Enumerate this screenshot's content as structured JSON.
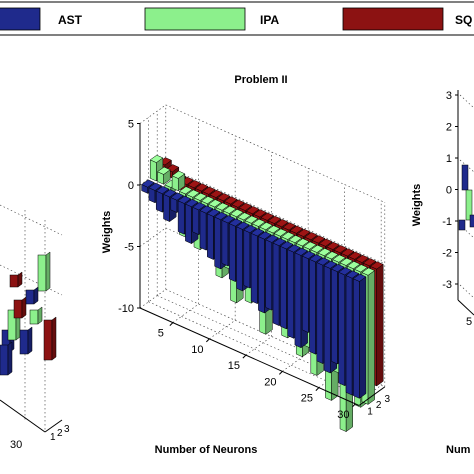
{
  "legend": {
    "entries": [
      {
        "label": "AST",
        "color": "#1f2a8c"
      },
      {
        "label": "IPA",
        "color": "#8cf08c"
      },
      {
        "label": "SQ",
        "color": "#8c1212"
      }
    ]
  },
  "chart_data": [
    {
      "type": "bar3d",
      "panel": "left",
      "title": "",
      "xlabel": "",
      "ylabel": "",
      "x_ticks": [
        "30"
      ],
      "depth_ticks": [
        "1",
        "2",
        "3"
      ]
    },
    {
      "type": "bar3d",
      "panel": "center",
      "title": "Problem II",
      "xlabel": "Number of Neurons",
      "ylabel": "Weights",
      "zlim": [
        -10,
        5
      ],
      "z_ticks": [
        "5",
        "0",
        "-5",
        "-10"
      ],
      "x_ticks": [
        "5",
        "10",
        "15",
        "20",
        "25",
        "30"
      ],
      "depth_ticks": [
        "1",
        "2",
        "3"
      ],
      "x": [
        1,
        2,
        3,
        4,
        5,
        6,
        7,
        8,
        9,
        10,
        11,
        12,
        13,
        14,
        15,
        16,
        17,
        18,
        19,
        20,
        21,
        22,
        23,
        24,
        25,
        26,
        27,
        28,
        29,
        30
      ],
      "series": [
        {
          "name": "AST",
          "values": [
            -0.5,
            -1.0,
            -1.5,
            -2.0,
            -1.0,
            -2.5,
            -3.0,
            -2.0,
            -3.0,
            -3.5,
            -4.0,
            -3.5,
            -4.5,
            -5.0,
            -4.5,
            -5.5,
            -6.0,
            -5.5,
            -6.5,
            -6.5,
            -7.0,
            -7.5,
            -6.0,
            -7.5,
            -8.0,
            -8.5,
            -7.5,
            -9.0,
            -9.5,
            -9.5
          ]
        },
        {
          "name": "IPA",
          "values": [
            1.5,
            0.8,
            -0.5,
            1.0,
            -3.5,
            -2.0,
            -4.0,
            -1.5,
            -3.5,
            -5.5,
            -4.5,
            -7.0,
            -5.0,
            -6.5,
            -5.5,
            -8.5,
            -6.0,
            -7.0,
            -8.0,
            -6.5,
            -9.0,
            -8.0,
            -10.0,
            -8.5,
            -11.5,
            -9.0,
            -13.5,
            -10.0,
            -11.0,
            -10.5
          ]
        },
        {
          "name": "SQ",
          "values": [
            0.8,
            0.5,
            -0.5,
            -1.5,
            -1.5,
            -2.0,
            -2.5,
            -2.5,
            -3.0,
            -3.0,
            -3.5,
            -4.5,
            -4.5,
            -5.0,
            -5.0,
            -5.5,
            -5.5,
            -6.5,
            -6.5,
            -7.0,
            -7.0,
            -7.5,
            -7.5,
            -8.0,
            -8.0,
            -8.5,
            -8.5,
            -9.0,
            -9.0,
            -9.5
          ]
        }
      ]
    },
    {
      "type": "bar3d",
      "panel": "right",
      "title": "",
      "xlabel": "Num",
      "ylabel": "Weights",
      "zlim": [
        -3,
        3
      ],
      "z_ticks": [
        "3",
        "2",
        "1",
        "0",
        "-1",
        "-2",
        "-3"
      ],
      "x_ticks": [
        "5"
      ]
    }
  ]
}
